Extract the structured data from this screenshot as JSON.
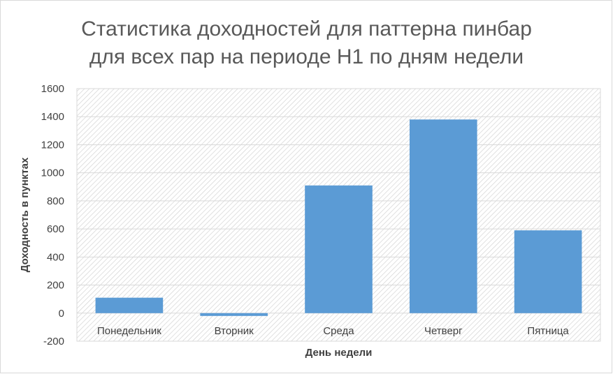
{
  "chart_data": {
    "type": "bar",
    "title": "Статистика доходностей для паттерна пинбар\nдля всех пар на периоде H1 по дням недели",
    "xlabel": "День недели",
    "ylabel": "Доходность в пунктах",
    "categories": [
      "Понедельник",
      "Вторник",
      "Среда",
      "Четверг",
      "Пятница"
    ],
    "values": [
      110,
      -20,
      910,
      1380,
      590
    ],
    "ylim": [
      -200,
      1600
    ],
    "yticks": [
      -200,
      0,
      200,
      400,
      600,
      800,
      1000,
      1200,
      1400,
      1600
    ],
    "grid": true,
    "legend": "none",
    "bar_color": "#5b9bd5",
    "plot_background": "hatched light grey"
  }
}
